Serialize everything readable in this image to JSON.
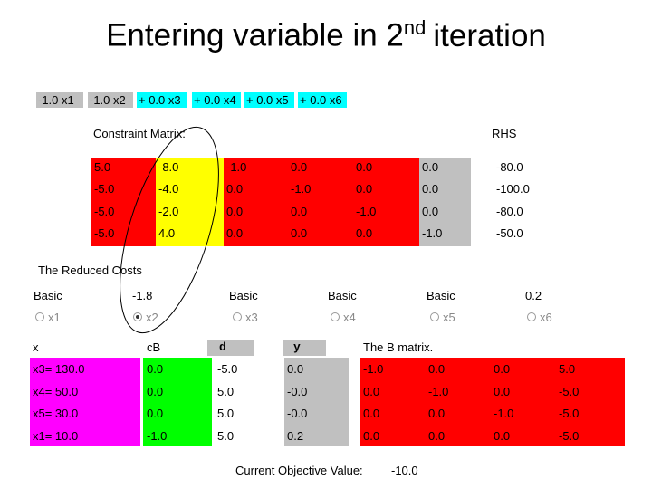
{
  "title": {
    "main": "Entering variable in 2",
    "sup": "nd",
    "rest": "iteration"
  },
  "objective": [
    "-1.0 x1",
    "-1.0 x2",
    "+ 0.0 x3",
    "+ 0.0 x4",
    "+ 0.0 x5",
    "+ 0.0 x6"
  ],
  "constraint_matrix": {
    "label": "Constraint Matrix:",
    "rhs_label": "RHS",
    "rows": [
      [
        "5.0",
        "-8.0",
        "-1.0",
        "0.0",
        "0.0",
        "0.0"
      ],
      [
        "-5.0",
        "-4.0",
        "0.0",
        "-1.0",
        "0.0",
        "0.0"
      ],
      [
        "-5.0",
        "-2.0",
        "0.0",
        "0.0",
        "-1.0",
        "0.0"
      ],
      [
        "-5.0",
        "4.0",
        "0.0",
        "0.0",
        "0.0",
        "-1.0"
      ]
    ],
    "rhs": [
      "-80.0",
      "-100.0",
      "-80.0",
      "-50.0"
    ]
  },
  "reduced_costs": {
    "label": "The Reduced Costs",
    "cells": [
      "Basic",
      "-1.8",
      "Basic",
      "Basic",
      "Basic",
      "0.2"
    ],
    "options": [
      "x1",
      "x2",
      "x3",
      "x4",
      "x5",
      "x6"
    ],
    "selected": 1
  },
  "basis_table": {
    "headers": [
      "x",
      "cB",
      "d",
      "y"
    ],
    "b_label": "The B matrix.",
    "rows": [
      {
        "x": "x3= 130.0",
        "cB": "0.0",
        "d": "-5.0",
        "y": "0.0",
        "B": [
          "-1.0",
          "0.0",
          "0.0",
          "5.0"
        ]
      },
      {
        "x": "x4= 50.0",
        "cB": "0.0",
        "d": "5.0",
        "y": "-0.0",
        "B": [
          "0.0",
          "-1.0",
          "0.0",
          "-5.0"
        ]
      },
      {
        "x": "x5= 30.0",
        "cB": "0.0",
        "d": "5.0",
        "y": "-0.0",
        "B": [
          "0.0",
          "0.0",
          "-1.0",
          "-5.0"
        ]
      },
      {
        "x": "x1= 10.0",
        "cB": "-1.0",
        "d": "5.0",
        "y": "0.2",
        "B": [
          "0.0",
          "0.0",
          "0.0",
          "-5.0"
        ]
      }
    ]
  },
  "footer": {
    "label": "Current Objective Value:",
    "value": "-10.0"
  }
}
